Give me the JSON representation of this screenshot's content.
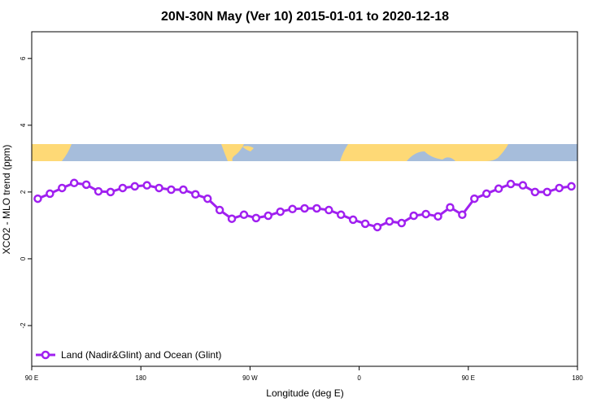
{
  "chart_data": {
    "type": "line",
    "title": "20N-30N May (Ver 10)   2015-01-01 to 2020-12-18",
    "x_label": "Longitude (deg E)",
    "y_label": "XCO2 - MLO trend (ppm)",
    "x": [
      95,
      105,
      115,
      125,
      135,
      145,
      155,
      165,
      175,
      185,
      195,
      205,
      215,
      225,
      235,
      245,
      255,
      265,
      275,
      285,
      295,
      305,
      315,
      325,
      335,
      345,
      355,
      365,
      375,
      385,
      395,
      405,
      415,
      425,
      435,
      445,
      455,
      465,
      475,
      485,
      495,
      505,
      515,
      525,
      535
    ],
    "series": [
      {
        "name": "Land (Nadir&Glint) and Ocean (Glint)",
        "color": "#a020f0",
        "values": [
          1.8,
          1.95,
          2.12,
          2.27,
          2.22,
          2.02,
          2.0,
          2.12,
          2.17,
          2.2,
          2.12,
          2.07,
          2.07,
          1.93,
          1.8,
          1.46,
          1.2,
          1.32,
          1.22,
          1.29,
          1.41,
          1.49,
          1.51,
          1.51,
          1.46,
          1.32,
          1.17,
          1.05,
          0.95,
          1.12,
          1.07,
          1.29,
          1.34,
          1.27,
          1.54,
          1.32,
          1.8,
          1.95,
          2.1,
          2.24,
          2.2,
          2.0,
          2.0,
          2.12,
          2.17
        ]
      }
    ],
    "xlim": [
      90,
      540
    ],
    "xticks": [
      {
        "value": 90,
        "label": "90 E"
      },
      180,
      {
        "value": 270,
        "label": "90 W"
      },
      {
        "value": 360,
        "label": "0"
      },
      {
        "value": 450,
        "label": "90 E"
      },
      {
        "value": 540,
        "label": "180"
      }
    ],
    "ylim": [
      -3.22,
      6.8
    ],
    "yticks": [
      -2,
      0,
      2,
      4,
      6
    ],
    "legend": "bottom-left"
  }
}
